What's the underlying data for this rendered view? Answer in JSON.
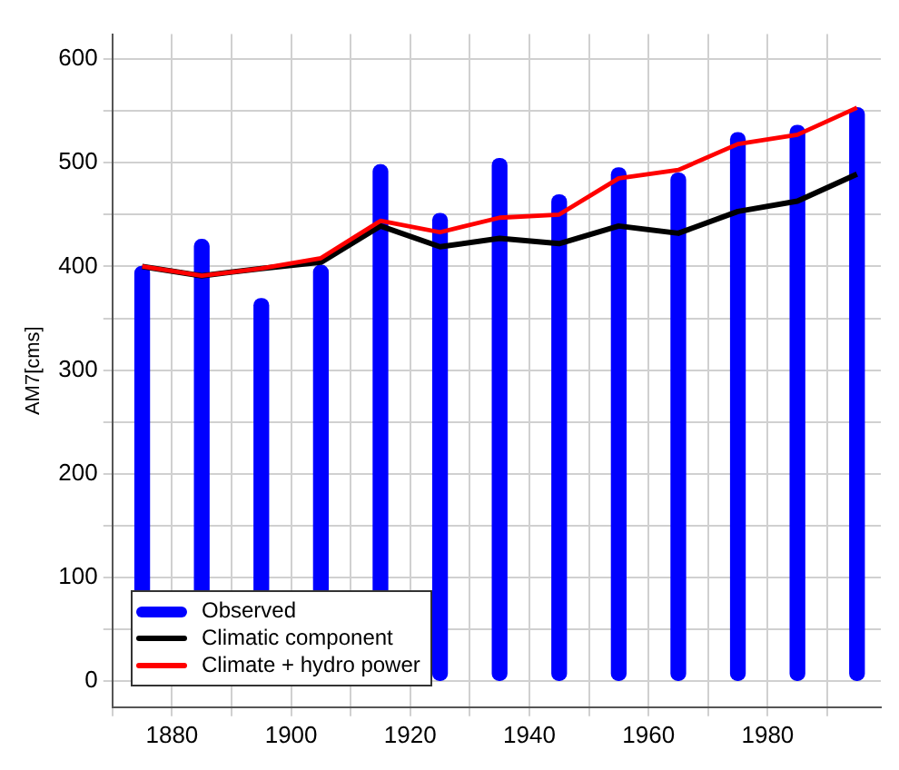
{
  "chart_data": {
    "type": "bar",
    "ylabel": "AM7[cms]",
    "x": [
      1875,
      1885,
      1895,
      1905,
      1915,
      1925,
      1935,
      1945,
      1955,
      1965,
      1975,
      1985,
      1995
    ],
    "series": [
      {
        "name": "Observed",
        "color": "#0000ff",
        "values": [
          400,
          426,
          369,
          401,
          498,
          451,
          504,
          469,
          495,
          490,
          529,
          536,
          553
        ]
      },
      {
        "name": "Climatic component",
        "type": "line",
        "color": "#000000",
        "values": [
          400,
          391,
          398,
          404,
          439,
          419,
          427,
          422,
          439,
          432,
          453,
          463,
          489
        ]
      },
      {
        "name": "Climate + hydro power",
        "type": "line",
        "color": "#ff0000",
        "values": [
          400,
          391,
          398,
          408,
          444,
          433,
          447,
          450,
          485,
          493,
          518,
          527,
          553
        ]
      }
    ],
    "xlim": [
      1870,
      1999
    ],
    "ylim": [
      -25,
      624
    ],
    "xticks": [
      {
        "value": 1870,
        "label": null
      },
      1880,
      {
        "value": 1890,
        "label": null
      },
      1900,
      {
        "value": 1910,
        "label": null
      },
      1920,
      {
        "value": 1930,
        "label": null
      },
      1940,
      {
        "value": 1950,
        "label": null
      },
      1960,
      {
        "value": 1970,
        "label": null
      },
      1980,
      {
        "value": 1990,
        "label": null
      }
    ],
    "yticks": [
      0,
      {
        "value": 50,
        "label": null
      },
      100,
      {
        "value": 150,
        "label": null
      },
      200,
      {
        "value": 250,
        "label": null
      },
      300,
      {
        "value": 350,
        "label": null
      },
      400,
      {
        "value": 450,
        "label": null
      },
      500,
      {
        "value": 550,
        "label": null
      },
      600
    ],
    "grid": true,
    "legend": "bottom left",
    "line_style": "solid",
    "marker": "none"
  }
}
